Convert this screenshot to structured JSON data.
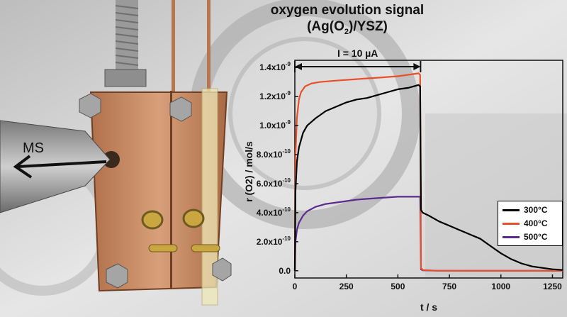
{
  "chart_data": {
    "type": "line",
    "title": "oxygen evolution signal",
    "subtitle": "(Ag(O2)/YSZ)",
    "xlabel": "t / s",
    "ylabel": "r (O2) / mol/s",
    "xlim": [
      0,
      1300
    ],
    "ylim": [
      -5e-11,
      1.45e-09
    ],
    "x_ticks": [
      0,
      250,
      500,
      750,
      1000,
      1250
    ],
    "y_ticks": [
      0.0,
      2e-10,
      4e-10,
      6e-10,
      8e-10,
      1e-09,
      1.2e-09,
      1.4e-09
    ],
    "y_tick_labels": [
      "0.0",
      "2.0x10-10",
      "4.0x10-10",
      "6.0x10-10",
      "8.0x10-10",
      "1.0x10-9",
      "1.2x10-9",
      "1.4x10-9"
    ],
    "annotation": "I = 10 µA",
    "annotation_range": [
      0,
      610
    ],
    "legend_position": "right",
    "series": [
      {
        "name": "300°C",
        "color": "#000000",
        "x": [
          0,
          3,
          10,
          20,
          40,
          60,
          100,
          150,
          200,
          250,
          300,
          350,
          400,
          450,
          500,
          550,
          600,
          608,
          612,
          620,
          650,
          700,
          750,
          800,
          850,
          900,
          950,
          1000,
          1050,
          1100,
          1150,
          1200,
          1250,
          1300
        ],
        "y": [
          0,
          5.5e-10,
          7.5e-10,
          8.5e-10,
          9.5e-10,
          1e-09,
          1.05e-09,
          1.1e-09,
          1.13e-09,
          1.16e-09,
          1.18e-09,
          1.19e-09,
          1.21e-09,
          1.23e-09,
          1.25e-09,
          1.26e-09,
          1.28e-09,
          1.27e-09,
          4.2e-10,
          4e-10,
          3.8e-10,
          3.4e-10,
          3.1e-10,
          2.8e-10,
          2.5e-10,
          2.2e-10,
          1.7e-10,
          1.2e-10,
          8e-11,
          5e-11,
          3e-11,
          2e-11,
          1e-11,
          5e-12
        ]
      },
      {
        "name": "400°C",
        "color": "#e8502a",
        "x": [
          0,
          3,
          10,
          20,
          30,
          50,
          80,
          120,
          200,
          300,
          400,
          500,
          550,
          600,
          608,
          612,
          620,
          700,
          800,
          1000,
          1300
        ],
        "y": [
          0,
          8e-10,
          1.05e-09,
          1.18e-09,
          1.23e-09,
          1.27e-09,
          1.29e-09,
          1.3e-09,
          1.31e-09,
          1.32e-09,
          1.33e-09,
          1.34e-09,
          1.35e-09,
          1.36e-09,
          1.35e-09,
          2e-11,
          5e-12,
          0,
          0,
          0,
          0
        ]
      },
      {
        "name": "500°C",
        "color": "#5a2d8c",
        "x": [
          0,
          3,
          10,
          20,
          40,
          60,
          100,
          150,
          200,
          300,
          400,
          500,
          550,
          600,
          608,
          612,
          620,
          700,
          800,
          1000,
          1300
        ],
        "y": [
          0,
          2e-10,
          2.8e-10,
          3.3e-10,
          3.8e-10,
          4.1e-10,
          4.4e-10,
          4.6e-10,
          4.7e-10,
          4.9e-10,
          5e-10,
          5.1e-10,
          5.1e-10,
          5.1e-10,
          5.1e-10,
          1e-11,
          3e-12,
          0,
          0,
          0,
          0
        ]
      }
    ]
  },
  "scene": {
    "ms_label": "MS"
  }
}
